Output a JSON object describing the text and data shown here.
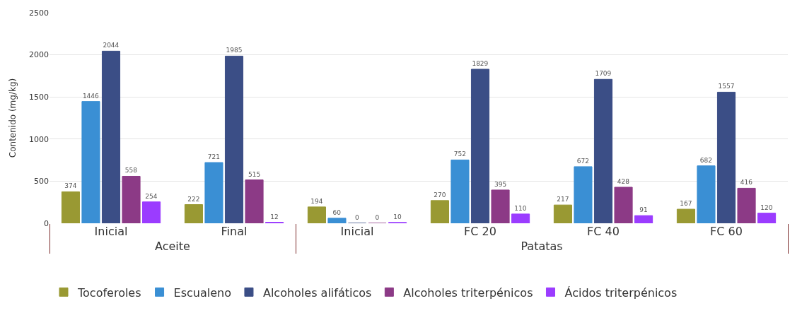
{
  "chart_data": {
    "type": "bar",
    "ylabel": "Contenido (mg/kg)",
    "categories": [
      "Inicial",
      "Final",
      "Inicial",
      "FC 20",
      "FC 40",
      "FC 60"
    ],
    "annotations": [
      "Aceite",
      "Patatas"
    ],
    "series": [
      {
        "name": "Tocoferoles",
        "color": "#999933",
        "values": [
          374,
          222,
          194,
          270,
          217,
          167
        ]
      },
      {
        "name": "Escualeno",
        "color": "#3a8fd4",
        "values": [
          1446,
          721,
          60,
          752,
          672,
          682
        ]
      },
      {
        "name": "Alcoholes alifáticos",
        "color": "#3b4e86",
        "values": [
          2044,
          1985,
          0,
          1829,
          1709,
          1557
        ]
      },
      {
        "name": "Alcoholes triterpénicos",
        "color": "#8c3a86",
        "values": [
          558,
          515,
          0,
          395,
          428,
          416
        ]
      },
      {
        "name": "Ácidos triterpénicos",
        "color": "#9b3cff",
        "values": [
          254,
          12,
          10,
          110,
          91,
          120
        ]
      }
    ],
    "ylim": [
      0,
      2500
    ],
    "yticks": [
      0,
      500,
      1000,
      1500,
      2000,
      2500
    ],
    "grid": "y",
    "legend": "bottom",
    "data_labels": true
  }
}
